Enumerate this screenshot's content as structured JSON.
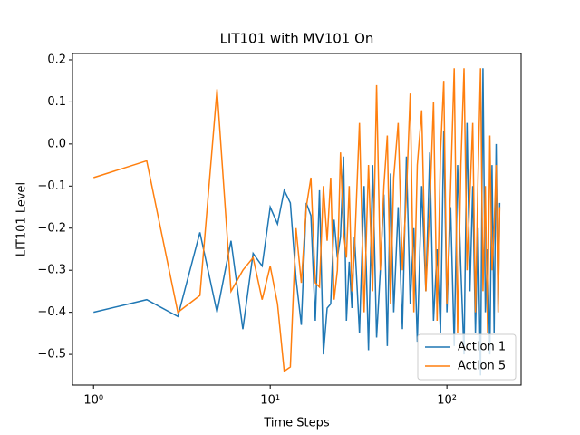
{
  "chart_data": {
    "type": "line",
    "title": "LIT101 with MV101 On",
    "x_label": "Time Steps",
    "y_label": "LIT101 Level",
    "x_scale": "log",
    "legend": "lower right",
    "x": [
      1,
      2,
      3,
      4,
      5,
      6,
      7,
      8,
      9,
      10,
      11,
      12,
      13,
      14,
      15,
      16,
      17,
      18,
      19,
      20,
      21,
      22,
      23,
      24,
      25,
      26,
      27,
      28,
      29,
      30,
      32,
      34,
      36,
      38,
      40,
      42,
      44,
      46,
      48,
      50,
      53,
      56,
      59,
      62,
      65,
      68,
      72,
      76,
      80,
      84,
      88,
      92,
      96,
      100,
      105,
      110,
      115,
      120,
      125,
      130,
      135,
      140,
      145,
      150,
      155,
      160,
      165,
      170,
      175,
      180,
      185,
      190,
      195,
      199
    ],
    "series": [
      {
        "name": "Action 1",
        "color": "#1f77b4",
        "values": [
          -0.4,
          -0.37,
          -0.41,
          -0.21,
          -0.4,
          -0.23,
          -0.44,
          -0.26,
          -0.29,
          -0.15,
          -0.19,
          -0.11,
          -0.14,
          -0.32,
          -0.43,
          -0.14,
          -0.17,
          -0.42,
          -0.11,
          -0.5,
          -0.39,
          -0.38,
          -0.18,
          -0.27,
          -0.22,
          -0.03,
          -0.42,
          -0.28,
          -0.39,
          -0.22,
          -0.45,
          -0.1,
          -0.49,
          -0.05,
          -0.46,
          -0.3,
          -0.12,
          -0.48,
          -0.07,
          -0.4,
          -0.15,
          -0.44,
          -0.03,
          -0.38,
          -0.2,
          -0.47,
          -0.1,
          -0.35,
          -0.02,
          -0.42,
          -0.25,
          -0.45,
          0.03,
          -0.4,
          -0.15,
          -0.48,
          -0.05,
          -0.3,
          -0.5,
          0.05,
          -0.35,
          -0.1,
          -0.45,
          -0.2,
          -0.55,
          0.18,
          -0.4,
          -0.25,
          -0.5,
          -0.05,
          -0.45,
          0.0,
          -0.4,
          -0.14
        ]
      },
      {
        "name": "Action 5",
        "color": "#ff7f0e",
        "values": [
          -0.08,
          -0.04,
          -0.4,
          -0.36,
          0.13,
          -0.35,
          -0.3,
          -0.27,
          -0.37,
          -0.29,
          -0.38,
          -0.54,
          -0.53,
          -0.2,
          -0.33,
          -0.15,
          -0.08,
          -0.33,
          -0.34,
          -0.1,
          -0.23,
          -0.08,
          -0.37,
          -0.3,
          -0.02,
          -0.21,
          -0.27,
          -0.1,
          -0.35,
          -0.25,
          0.05,
          -0.4,
          -0.05,
          -0.35,
          0.14,
          -0.3,
          -0.1,
          0.02,
          -0.38,
          -0.08,
          0.05,
          -0.3,
          -0.12,
          0.12,
          -0.4,
          -0.05,
          0.08,
          -0.35,
          -0.15,
          0.1,
          -0.42,
          -0.02,
          0.15,
          -0.38,
          -0.1,
          0.18,
          -0.45,
          -0.05,
          0.18,
          -0.3,
          -0.12,
          0.05,
          -0.4,
          -0.08,
          0.18,
          -0.35,
          -0.1,
          -0.45,
          0.02,
          -0.3,
          -0.2,
          -0.05,
          -0.4,
          -0.15
        ]
      }
    ],
    "xlim": [
      0.76,
      263
    ],
    "xticks": [
      {
        "value": 1,
        "label": "10⁰"
      },
      {
        "value": 10,
        "label": "10¹"
      },
      {
        "value": 100,
        "label": "10²"
      }
    ],
    "ylim": [
      -0.573,
      0.215
    ],
    "yticks": [
      {
        "value": -0.5,
        "label": "−0.5"
      },
      {
        "value": -0.4,
        "label": "−0.4"
      },
      {
        "value": -0.3,
        "label": "−0.3"
      },
      {
        "value": -0.2,
        "label": "−0.2"
      },
      {
        "value": -0.1,
        "label": "−0.1"
      },
      {
        "value": 0,
        "label": "0.0"
      },
      0.1,
      0.2
    ]
  }
}
